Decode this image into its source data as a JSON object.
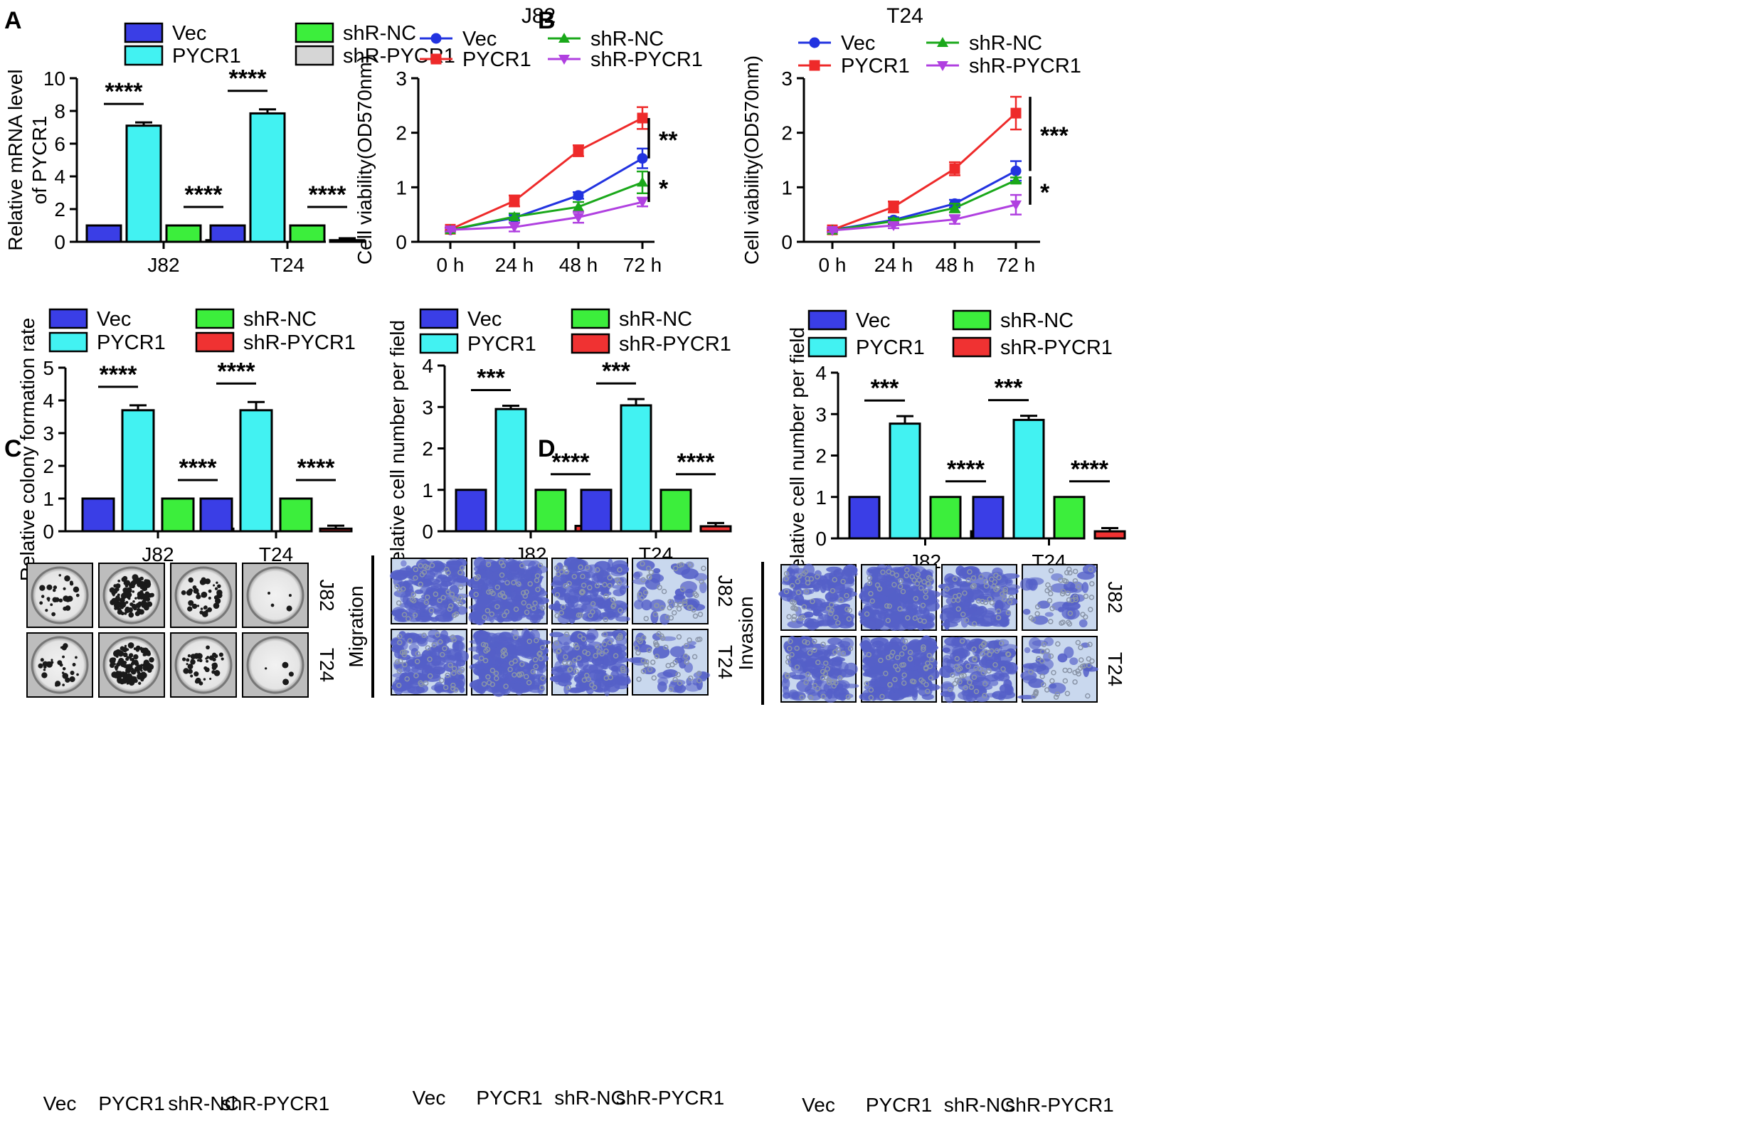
{
  "figure": {
    "panel_labels": [
      "A",
      "B",
      "C",
      "D"
    ],
    "colors": {
      "Vec": "#3a3ee6",
      "PYCR1": "#42f2f2",
      "shR-NC": "#3cee3c",
      "shR-PYCR1_gray": "#d6d6d6",
      "shR-PYCR1_red": "#f03232",
      "line_Vec": "#2233e0",
      "line_PYCR1": "#ee2a2a",
      "line_shR-NC": "#1aa81a",
      "line_shR-PYCR1": "#b040e0",
      "well_bg": "#d9d9d9",
      "well_dots": "#1a1a1a",
      "stain_bg": "#c9d8ee",
      "stain_cells": "#5560c8"
    },
    "images": {
      "colony_rows": [
        "J82",
        "T24"
      ],
      "colony_cols": [
        "Vec",
        "PYCR1",
        "shR-NC",
        "shR-PYCR1"
      ],
      "migration_side": "Migration",
      "invasion_side": "Invasion",
      "transwell_rows": [
        "J82",
        "T24"
      ],
      "transwell_cols": [
        "Vec",
        "PYCR1",
        "shR-NC",
        "shR-PYCR1"
      ]
    }
  },
  "chart_data": [
    {
      "id": "A",
      "type": "bar",
      "title": "",
      "xlabel": "",
      "ylabel": "Relative mRNA level of PYCR1",
      "ylabel_lines": [
        "Relative mRNA level",
        "of PYCR1"
      ],
      "ylim": [
        0,
        10
      ],
      "yticks": [
        0,
        2,
        4,
        6,
        8,
        10
      ],
      "categories": [
        "J82",
        "T24"
      ],
      "legend": [
        "Vec",
        "PYCR1",
        "shR-NC",
        "shR-PYCR1"
      ],
      "series": [
        {
          "name": "Vec",
          "values": [
            1.0,
            1.0
          ],
          "errors": [
            0,
            0
          ]
        },
        {
          "name": "PYCR1",
          "values": [
            7.1,
            7.85
          ],
          "errors": [
            0.2,
            0.25
          ]
        },
        {
          "name": "shR-NC",
          "values": [
            1.0,
            1.0
          ],
          "errors": [
            0,
            0
          ]
        },
        {
          "name": "shR-PYCR1",
          "values": [
            0.1,
            0.1
          ],
          "errors": [
            0.1,
            0.12
          ]
        }
      ],
      "annotations": [
        {
          "group": 0,
          "pair": [
            0,
            1
          ],
          "text": "****"
        },
        {
          "group": 0,
          "pair": [
            2,
            3
          ],
          "text": "****"
        },
        {
          "group": 1,
          "pair": [
            0,
            1
          ],
          "text": "****"
        },
        {
          "group": 1,
          "pair": [
            2,
            3
          ],
          "text": "****"
        }
      ]
    },
    {
      "id": "B1",
      "type": "line",
      "title": "J82",
      "xlabel": "",
      "ylabel": "Cell viability(OD570nm)",
      "ylim": [
        0,
        3
      ],
      "yticks": [
        0,
        1,
        2,
        3
      ],
      "x": [
        "0 h",
        "24 h",
        "48 h",
        "72 h"
      ],
      "series": [
        {
          "name": "Vec",
          "values": [
            0.22,
            0.44,
            0.85,
            1.53
          ],
          "errors": [
            0.03,
            0.05,
            0.06,
            0.18
          ]
        },
        {
          "name": "PYCR1",
          "values": [
            0.23,
            0.75,
            1.67,
            2.27
          ],
          "errors": [
            0.03,
            0.1,
            0.1,
            0.2
          ]
        },
        {
          "name": "shR-NC",
          "values": [
            0.22,
            0.46,
            0.64,
            1.09
          ],
          "errors": [
            0.03,
            0.06,
            0.09,
            0.2
          ]
        },
        {
          "name": "shR-PYCR1",
          "values": [
            0.22,
            0.27,
            0.45,
            0.73
          ],
          "errors": [
            0.03,
            0.08,
            0.1,
            0.08
          ]
        }
      ],
      "annotations": [
        {
          "range": [
            1.53,
            2.27
          ],
          "text": "**"
        },
        {
          "range": [
            0.73,
            1.29
          ],
          "text": "*"
        }
      ]
    },
    {
      "id": "B2",
      "type": "line",
      "title": "T24",
      "xlabel": "",
      "ylabel": "Cell viability(OD570nm)",
      "ylim": [
        0,
        3
      ],
      "yticks": [
        0,
        1,
        2,
        3
      ],
      "x": [
        "0 h",
        "24 h",
        "48 h",
        "72 h"
      ],
      "series": [
        {
          "name": "Vec",
          "values": [
            0.22,
            0.4,
            0.7,
            1.3
          ],
          "errors": [
            0.03,
            0.05,
            0.07,
            0.18
          ]
        },
        {
          "name": "PYCR1",
          "values": [
            0.22,
            0.64,
            1.34,
            2.36
          ],
          "errors": [
            0.03,
            0.1,
            0.12,
            0.3
          ]
        },
        {
          "name": "shR-NC",
          "values": [
            0.21,
            0.38,
            0.62,
            1.13
          ],
          "errors": [
            0.03,
            0.05,
            0.08,
            0.05
          ]
        },
        {
          "name": "shR-PYCR1",
          "values": [
            0.21,
            0.3,
            0.41,
            0.68
          ],
          "errors": [
            0.03,
            0.05,
            0.08,
            0.18
          ]
        }
      ],
      "annotations": [
        {
          "range": [
            1.3,
            2.66
          ],
          "text": "***"
        },
        {
          "range": [
            0.68,
            1.2
          ],
          "text": "*"
        }
      ]
    },
    {
      "id": "C",
      "type": "bar",
      "title": "",
      "xlabel": "",
      "ylabel": "Relative colony formation rate",
      "ylim": [
        0,
        5
      ],
      "yticks": [
        0,
        1,
        2,
        3,
        4,
        5
      ],
      "categories": [
        "J82",
        "T24"
      ],
      "legend": [
        "Vec",
        "PYCR1",
        "shR-NC",
        "shR-PYCR1"
      ],
      "series": [
        {
          "name": "Vec",
          "values": [
            1.0,
            1.0
          ],
          "errors": [
            0,
            0
          ]
        },
        {
          "name": "PYCR1",
          "values": [
            3.7,
            3.7
          ],
          "errors": [
            0.15,
            0.25
          ]
        },
        {
          "name": "shR-NC",
          "values": [
            1.0,
            1.0
          ],
          "errors": [
            0,
            0
          ]
        },
        {
          "name": "shR-PYCR1",
          "values": [
            0.08,
            0.08
          ],
          "errors": [
            0.07,
            0.09
          ]
        }
      ],
      "annotations": [
        {
          "group": 0,
          "pair": [
            0,
            1
          ],
          "text": "****"
        },
        {
          "group": 0,
          "pair": [
            2,
            3
          ],
          "text": "****"
        },
        {
          "group": 1,
          "pair": [
            0,
            1
          ],
          "text": "****"
        },
        {
          "group": 1,
          "pair": [
            2,
            3
          ],
          "text": "****"
        }
      ]
    },
    {
      "id": "D1",
      "type": "bar",
      "title": "",
      "xlabel": "",
      "ylabel": "Relative cell number per field",
      "ylim": [
        0,
        4
      ],
      "yticks": [
        0,
        1,
        2,
        3,
        4
      ],
      "categories": [
        "J82",
        "T24"
      ],
      "legend": [
        "Vec",
        "PYCR1",
        "shR-NC",
        "shR-PYCR1"
      ],
      "series": [
        {
          "name": "Vec",
          "values": [
            1.0,
            1.0
          ],
          "errors": [
            0,
            0
          ]
        },
        {
          "name": "PYCR1",
          "values": [
            2.95,
            3.04
          ],
          "errors": [
            0.08,
            0.15
          ]
        },
        {
          "name": "shR-NC",
          "values": [
            1.0,
            1.0
          ],
          "errors": [
            0,
            0
          ]
        },
        {
          "name": "shR-PYCR1",
          "values": [
            0.13,
            0.12
          ],
          "errors": [
            0.05,
            0.08
          ]
        }
      ],
      "annotations": [
        {
          "group": 0,
          "pair": [
            0,
            1
          ],
          "text": "***"
        },
        {
          "group": 0,
          "pair": [
            2,
            3
          ],
          "text": "****"
        },
        {
          "group": 1,
          "pair": [
            0,
            1
          ],
          "text": "***"
        },
        {
          "group": 1,
          "pair": [
            2,
            3
          ],
          "text": "****"
        }
      ]
    },
    {
      "id": "D2",
      "type": "bar",
      "title": "",
      "xlabel": "",
      "ylabel": "Relative cell number per field",
      "ylim": [
        0,
        4
      ],
      "yticks": [
        0,
        1,
        2,
        3,
        4
      ],
      "categories": [
        "J82",
        "T24"
      ],
      "legend": [
        "Vec",
        "PYCR1",
        "shR-NC",
        "shR-PYCR1"
      ],
      "series": [
        {
          "name": "Vec",
          "values": [
            1.0,
            1.0
          ],
          "errors": [
            0,
            0
          ]
        },
        {
          "name": "PYCR1",
          "values": [
            2.77,
            2.86
          ],
          "errors": [
            0.18,
            0.1
          ]
        },
        {
          "name": "shR-NC",
          "values": [
            1.0,
            1.0
          ],
          "errors": [
            0,
            0
          ]
        },
        {
          "name": "shR-PYCR1",
          "values": [
            0.17,
            0.17
          ],
          "errors": [
            0.05,
            0.08
          ]
        }
      ],
      "annotations": [
        {
          "group": 0,
          "pair": [
            0,
            1
          ],
          "text": "***"
        },
        {
          "group": 0,
          "pair": [
            2,
            3
          ],
          "text": "****"
        },
        {
          "group": 1,
          "pair": [
            0,
            1
          ],
          "text": "***"
        },
        {
          "group": 1,
          "pair": [
            2,
            3
          ],
          "text": "****"
        }
      ]
    }
  ]
}
